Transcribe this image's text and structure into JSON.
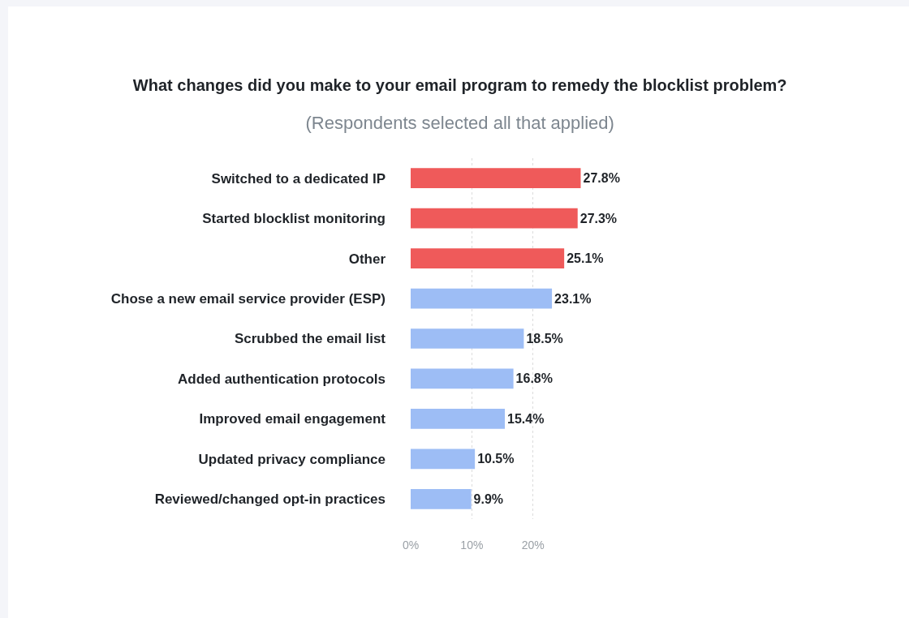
{
  "chart_data": {
    "type": "bar",
    "orientation": "horizontal",
    "title": "What changes did you make to your email program to remedy the blocklist problem?",
    "subtitle": "(Respondents selected all that applied)",
    "categories": [
      "Switched to a dedicated IP",
      "Started blocklist monitoring",
      "Other",
      "Chose a new email service provider (ESP)",
      "Scrubbed the email list",
      "Added authentication protocols",
      "Improved email engagement",
      "Updated privacy compliance",
      "Reviewed/changed opt-in practices"
    ],
    "values": [
      27.8,
      27.3,
      25.1,
      23.1,
      18.5,
      16.8,
      15.4,
      10.5,
      9.9
    ],
    "value_labels": [
      "27.8%",
      "27.3%",
      "25.1%",
      "23.1%",
      "18.5%",
      "16.8%",
      "15.4%",
      "10.5%",
      "9.9%"
    ],
    "colors": [
      "#ef5a5a",
      "#ef5a5a",
      "#ef5a5a",
      "#9dbdf5",
      "#9dbdf5",
      "#9dbdf5",
      "#9dbdf5",
      "#9dbdf5",
      "#9dbdf5"
    ],
    "xlim": [
      0,
      28
    ],
    "xticks": [
      {
        "value": 0,
        "label": "0%"
      },
      {
        "value": 10,
        "label": "10%"
      },
      {
        "value": 20,
        "label": "20%"
      }
    ],
    "grid": "x"
  }
}
